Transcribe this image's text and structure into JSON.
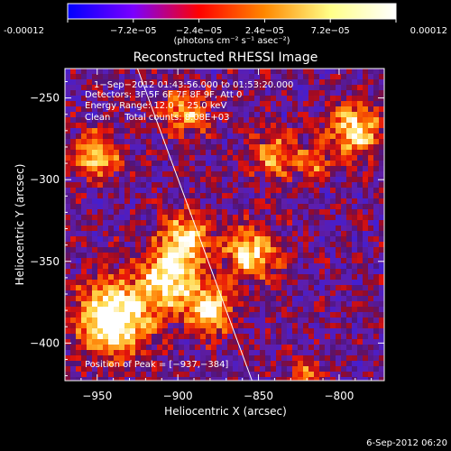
{
  "chart_data": {
    "type": "heatmap",
    "title": "Reconstructed RHESSI Image",
    "xlabel": "Heliocentric X (arcsec)",
    "ylabel": "Heliocentric Y (arcsec)",
    "xlim": [
      -970,
      -772
    ],
    "ylim": [
      -423,
      -232
    ],
    "x_ticks": [
      -950,
      -900,
      -850,
      -800
    ],
    "x_tick_labels": [
      "−950",
      "−900",
      "−850",
      "−800"
    ],
    "y_ticks": [
      -250,
      -300,
      -350,
      -400
    ],
    "y_tick_labels": [
      "−250",
      "−300",
      "−350",
      "−400"
    ],
    "colorbar": {
      "min": -0.00012,
      "max": 0.00012,
      "ticks": [
        -0.00012,
        -7.2e-05,
        -2.4e-05,
        2.4e-05,
        7.2e-05,
        0.00012
      ],
      "tick_labels": [
        "-0.00012",
        "−7.2e−05",
        "−2.4e−05",
        "2.4e−05",
        "7.2e−05",
        "0.00012"
      ],
      "unit_label": "(photons cm⁻² s⁻¹ asec⁻²)",
      "colors": [
        "#0000ff",
        "#7a00ff",
        "#ff0000",
        "#ff8800",
        "#ffff88",
        "#ffffff"
      ]
    },
    "annotations": [
      "1−Sep−2012 01:43:56.000 to 01:53:20.000",
      "Detectors: 3F 5F 6F 7F 8F 9F, Att 0",
      "Energy Range: 12.0 − 25.0 keV",
      "Clean     Total counts: 8.08E+03"
    ],
    "peak_label": "Position of Peak = [−937,−384]",
    "peak_position": [
      -937,
      -384
    ],
    "limb_line": [
      [
        -925,
        -232
      ],
      [
        -854,
        -423
      ]
    ],
    "sources": [
      {
        "x": -940,
        "y": -385,
        "intensity": 1.0,
        "size": 22
      },
      {
        "x": -905,
        "y": -360,
        "intensity": 0.85,
        "size": 18
      },
      {
        "x": -880,
        "y": -380,
        "intensity": 0.75,
        "size": 14
      },
      {
        "x": -895,
        "y": -335,
        "intensity": 0.7,
        "size": 14
      },
      {
        "x": -950,
        "y": -285,
        "intensity": 0.65,
        "size": 14
      },
      {
        "x": -855,
        "y": -345,
        "intensity": 0.75,
        "size": 16
      },
      {
        "x": -790,
        "y": -270,
        "intensity": 0.75,
        "size": 16
      },
      {
        "x": -895,
        "y": -260,
        "intensity": 0.55,
        "size": 14
      },
      {
        "x": -840,
        "y": -285,
        "intensity": 0.55,
        "size": 14
      },
      {
        "x": -815,
        "y": -290,
        "intensity": 0.45,
        "size": 10
      },
      {
        "x": -820,
        "y": -420,
        "intensity": 0.5,
        "size": 10
      }
    ]
  },
  "footer": {
    "timestamp": "6-Sep-2012 06:20"
  }
}
